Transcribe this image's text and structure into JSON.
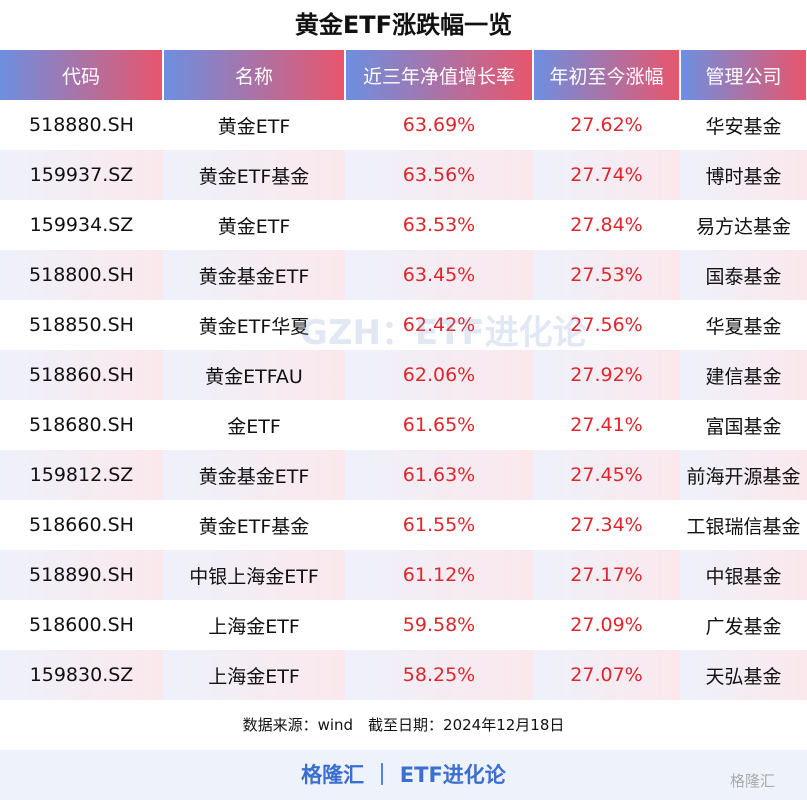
{
  "title": "黄金ETF涨跌幅一览",
  "table": {
    "header": [
      "代码",
      "名称",
      "近三年净值增长率",
      "年初至今涨幅",
      "管理公司"
    ],
    "rows": [
      [
        "518880.SH",
        "黄金ETF",
        "63.69%",
        "27.62%",
        "华安基金"
      ],
      [
        "159937.SZ",
        "黄金ETF基金",
        "63.56%",
        "27.74%",
        "博时基金"
      ],
      [
        "159934.SZ",
        "黄金ETF",
        "63.53%",
        "27.84%",
        "易方达基金"
      ],
      [
        "518800.SH",
        "黄金基金ETF",
        "63.45%",
        "27.53%",
        "国泰基金"
      ],
      [
        "518850.SH",
        "黄金ETF华夏",
        "62.42%",
        "27.56%",
        "华夏基金"
      ],
      [
        "518860.SH",
        "黄金ETFAU",
        "62.06%",
        "27.92%",
        "建信基金"
      ],
      [
        "518680.SH",
        "金ETF",
        "61.65%",
        "27.41%",
        "富国基金"
      ],
      [
        "159812.SZ",
        "黄金基金ETF",
        "61.63%",
        "27.45%",
        "前海开源基金"
      ],
      [
        "518660.SH",
        "黄金ETF基金",
        "61.55%",
        "27.34%",
        "工银瑞信基金"
      ],
      [
        "518890.SH",
        "中银上海金ETF",
        "61.12%",
        "27.17%",
        "中银基金"
      ],
      [
        "518600.SH",
        "上海金ETF",
        "59.58%",
        "27.09%",
        "广发基金"
      ],
      [
        "159830.SZ",
        "上海金ETF",
        "58.25%",
        "27.07%",
        "天弘基金"
      ]
    ]
  },
  "source_note": "数据来源：wind　截至日期：2024年12月18日",
  "footer": "格隆汇 ｜ ETF进化论",
  "watermark": "GZH：ETF进化论",
  "logo": "格隆汇"
}
